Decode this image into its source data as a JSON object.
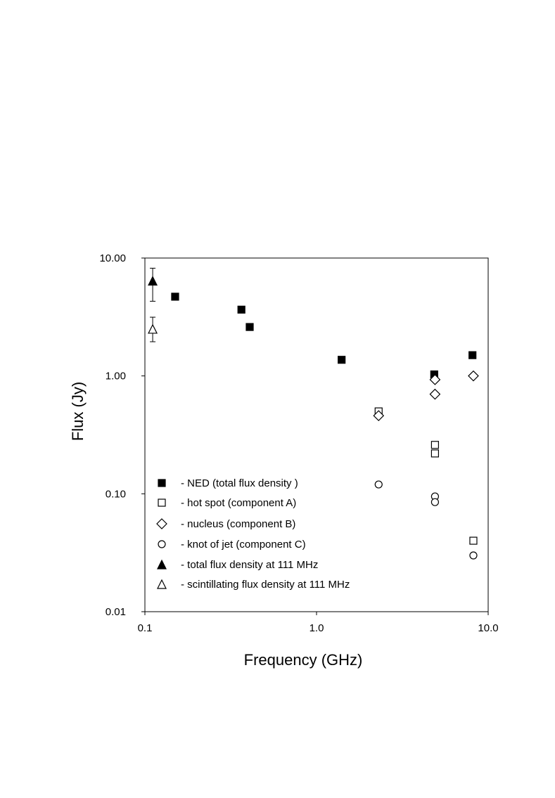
{
  "chart_data": {
    "type": "scatter",
    "xlabel": "Frequency (GHz)",
    "ylabel": "Flux (Jy)",
    "xscale": "log",
    "yscale": "log",
    "xlim": [
      0.1,
      10.0
    ],
    "ylim": [
      0.01,
      10.0
    ],
    "xticks": [
      {
        "value": 0.1,
        "label": "0.1"
      },
      {
        "value": 1.0,
        "label": "1.0"
      },
      {
        "value": 10.0,
        "label": "10.0"
      }
    ],
    "yticks": [
      {
        "value": 0.01,
        "label": "0.01"
      },
      {
        "value": 0.1,
        "label": "0.10"
      },
      {
        "value": 1.0,
        "label": "1.00"
      },
      {
        "value": 10.0,
        "label": "10.00"
      }
    ],
    "grid": false,
    "legend_position": "bottom-left",
    "series": [
      {
        "name": "- NED (total  flux  density )",
        "marker": "filled-square",
        "points": [
          {
            "x": 0.15,
            "y": 4.7
          },
          {
            "x": 0.365,
            "y": 3.65
          },
          {
            "x": 0.408,
            "y": 2.6
          },
          {
            "x": 1.4,
            "y": 1.37
          },
          {
            "x": 4.85,
            "y": 1.03
          },
          {
            "x": 8.1,
            "y": 1.5
          }
        ]
      },
      {
        "name": "- hot spot (component  A)",
        "marker": "open-square",
        "points": [
          {
            "x": 2.3,
            "y": 0.5
          },
          {
            "x": 4.9,
            "y": 0.26
          },
          {
            "x": 4.9,
            "y": 0.22
          },
          {
            "x": 8.2,
            "y": 0.04
          }
        ]
      },
      {
        "name": "- nucleus (component  B)",
        "marker": "open-diamond",
        "points": [
          {
            "x": 2.3,
            "y": 0.46
          },
          {
            "x": 4.9,
            "y": 0.93
          },
          {
            "x": 4.9,
            "y": 0.7
          },
          {
            "x": 8.2,
            "y": 1.0
          }
        ]
      },
      {
        "name": "- knot of jet (component C)",
        "marker": "open-circle",
        "points": [
          {
            "x": 2.3,
            "y": 0.12
          },
          {
            "x": 4.9,
            "y": 0.095
          },
          {
            "x": 4.9,
            "y": 0.085
          },
          {
            "x": 8.2,
            "y": 0.03
          }
        ]
      },
      {
        "name": "- total  flux density at 111 MHz",
        "marker": "filled-triangle",
        "points": [
          {
            "x": 0.111,
            "y": 6.4,
            "err_low": 4.3,
            "err_high": 8.2
          }
        ]
      },
      {
        "name": "- scintillating  flux density  at 111 MHz",
        "marker": "open-triangle",
        "points": [
          {
            "x": 0.111,
            "y": 2.5,
            "err_low": 1.95,
            "err_high": 3.15
          }
        ]
      }
    ]
  }
}
